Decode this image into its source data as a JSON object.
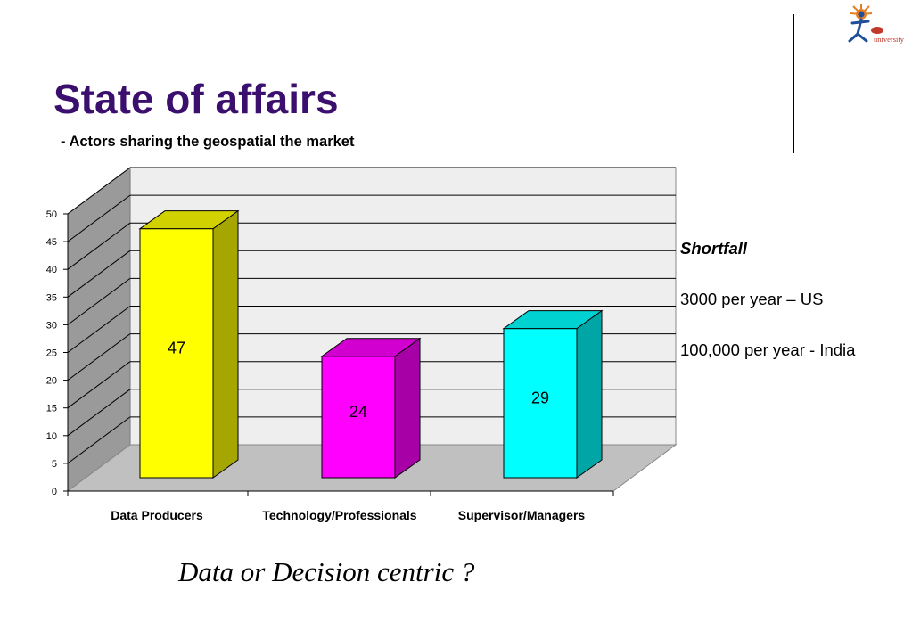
{
  "slide": {
    "title": "State of affairs",
    "subtitle": "- Actors sharing the geospatial the market",
    "logo_text": "university"
  },
  "side_notes": {
    "heading": "Shortfall",
    "lines": [
      "3000 per year – US",
      "100,000 per year - India"
    ]
  },
  "bottom_question": "Data or Decision centric ?",
  "chart_data": {
    "type": "bar",
    "categories": [
      "Data Producers",
      "Technology/Professionals",
      "Supervisor/Managers"
    ],
    "values": [
      47,
      24,
      29
    ],
    "data_labels": [
      "47",
      "24",
      "29"
    ],
    "colors": [
      "#ffff00",
      "#ff00ff",
      "#00ffff"
    ],
    "ylim": [
      0,
      50
    ],
    "yticks": [
      0,
      5,
      10,
      15,
      20,
      25,
      30,
      35,
      40,
      45,
      50
    ],
    "grid": true,
    "style": "3d",
    "title": "",
    "xlabel": "",
    "ylabel": ""
  }
}
